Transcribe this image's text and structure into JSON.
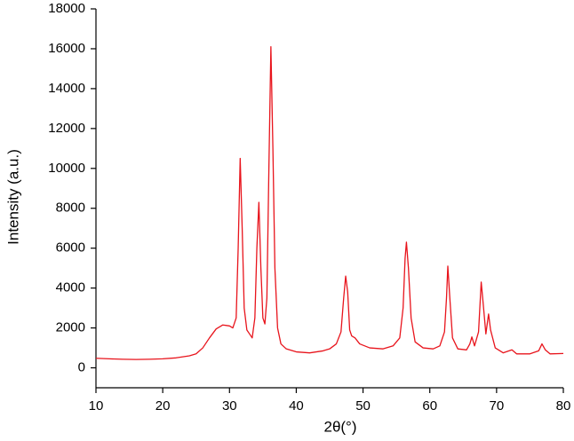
{
  "chart_data": {
    "type": "line",
    "x_label": "2θ(°)",
    "y_label": "Intensity (a.u.)",
    "x": [
      10,
      12,
      14,
      16,
      18,
      20,
      22,
      24,
      25,
      26,
      27,
      28,
      29,
      30,
      30.5,
      31,
      31.3,
      31.6,
      31.9,
      32.2,
      32.6,
      33,
      33.4,
      33.8,
      34.1,
      34.4,
      34.7,
      35,
      35.3,
      35.6,
      35.9,
      36.2,
      36.5,
      36.8,
      37.2,
      37.7,
      38.5,
      40,
      42,
      44,
      45,
      46,
      46.7,
      47.1,
      47.4,
      47.7,
      48,
      48.3,
      48.8,
      49.5,
      51,
      53,
      54.5,
      55.5,
      56,
      56.3,
      56.5,
      56.8,
      57.2,
      57.8,
      59,
      60.5,
      61.5,
      62.2,
      62.5,
      62.7,
      63,
      63.4,
      64.2,
      65.5,
      66,
      66.3,
      66.7,
      67.3,
      67.7,
      68,
      68.4,
      68.8,
      69.1,
      69.8,
      71,
      72.3,
      73,
      75,
      76.3,
      76.8,
      77.3,
      78,
      80
    ],
    "series": [
      {
        "color": "#e8141c",
        "values": [
          480,
          450,
          430,
          420,
          430,
          450,
          500,
          600,
          700,
          1000,
          1500,
          1950,
          2150,
          2100,
          2000,
          2500,
          6000,
          10500,
          7000,
          3000,
          1900,
          1700,
          1500,
          2500,
          6000,
          8300,
          5000,
          2500,
          2200,
          3500,
          10000,
          16100,
          11000,
          5000,
          2000,
          1200,
          950,
          800,
          750,
          850,
          950,
          1200,
          1800,
          3500,
          4600,
          3800,
          1900,
          1600,
          1500,
          1200,
          1000,
          950,
          1100,
          1500,
          3000,
          5500,
          6300,
          5000,
          2500,
          1300,
          1000,
          950,
          1100,
          1800,
          3500,
          5100,
          3500,
          1500,
          950,
          900,
          1200,
          1550,
          1100,
          1800,
          4300,
          3200,
          1700,
          2700,
          1900,
          1000,
          750,
          900,
          700,
          700,
          850,
          1200,
          900,
          700,
          720
        ]
      }
    ],
    "xlim": [
      10,
      80
    ],
    "xticks": [
      10,
      20,
      30,
      40,
      50,
      60,
      70,
      80
    ],
    "ylim": [
      -1000,
      18000
    ],
    "yticks": [
      0,
      2000,
      4000,
      6000,
      8000,
      10000,
      12000,
      14000,
      16000,
      18000
    ]
  }
}
